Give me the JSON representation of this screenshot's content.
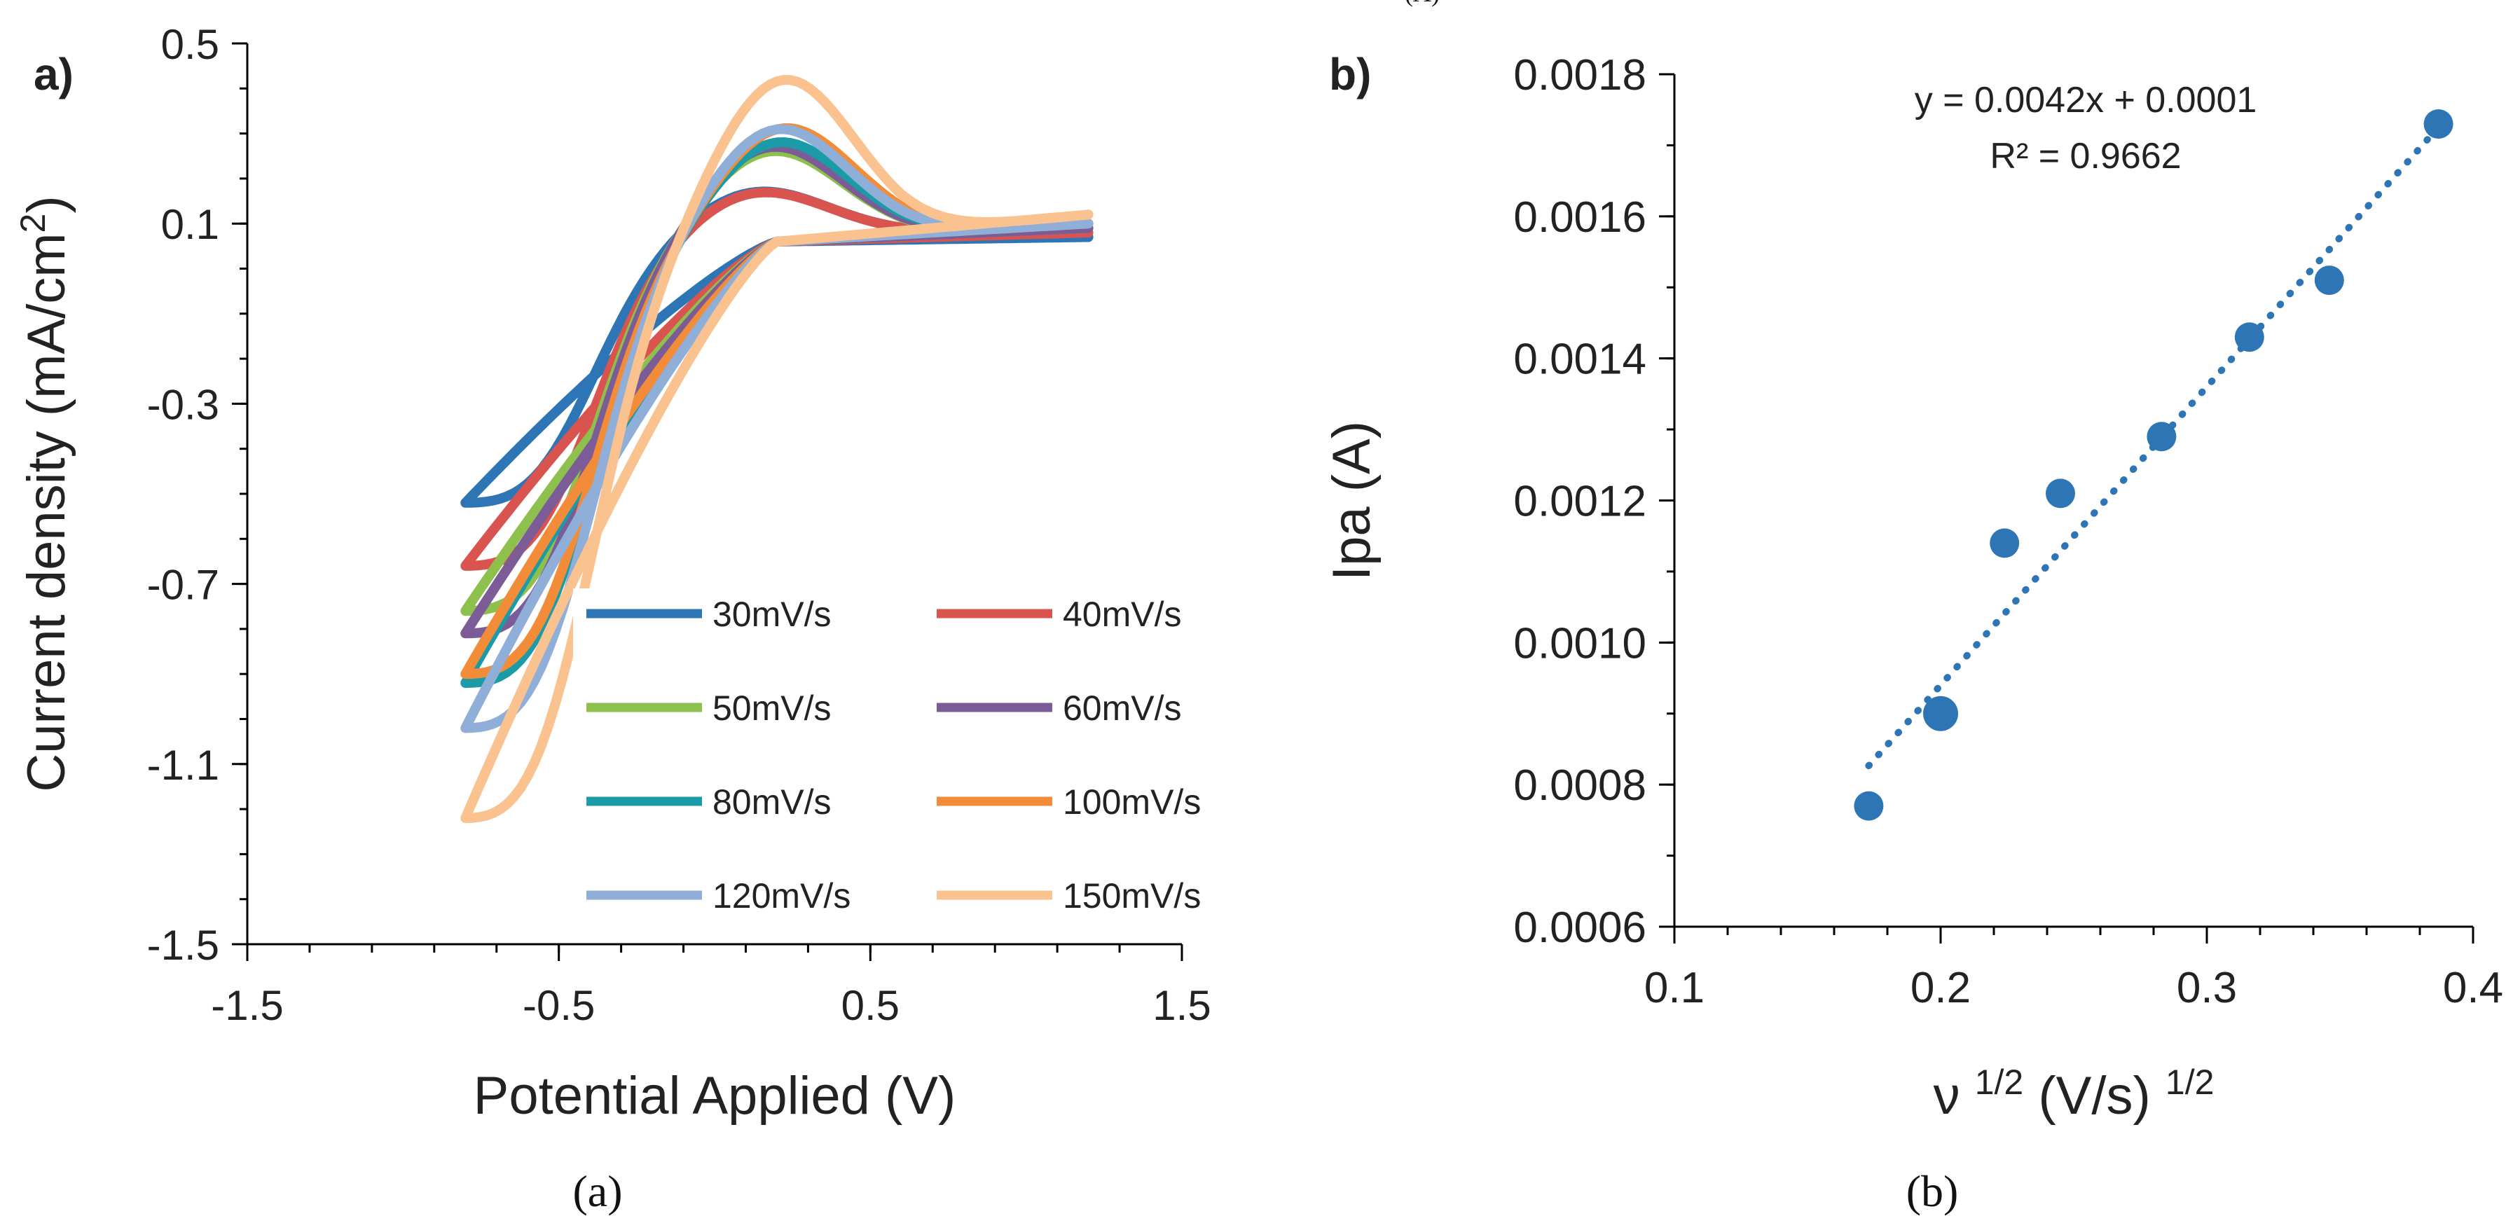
{
  "figure": {
    "caption_a": "(a)",
    "caption_b": "(b)",
    "panel_label_a": "a)",
    "panel_label_b": "b)",
    "header_fragment": "(A)"
  },
  "chart_data": [
    {
      "type": "line",
      "title": "",
      "xlabel": "Potential Applied (V)",
      "ylabel": "Current density (mA/cm²)",
      "xlim": [
        -1.5,
        1.5
      ],
      "ylim": [
        -1.5,
        0.5
      ],
      "xticks": [
        -1.5,
        -0.5,
        0.5,
        1.5
      ],
      "xtick_labels": [
        "-1.5",
        "-0.5",
        "0.5",
        "1.5"
      ],
      "yticks": [
        0.5,
        0.1,
        -0.3,
        -0.7,
        -1.1,
        -1.5
      ],
      "ytick_labels": [
        "0.5",
        "0.1",
        "-0.3",
        "-0.7",
        "-1.1",
        "-1.5"
      ],
      "legend_position": "lower-right",
      "series": [
        {
          "name": "30mV/s",
          "color": "#2E75B6",
          "e_min": -0.8,
          "e_max": 1.2,
          "i_low": -0.52,
          "i_pa": 0.18,
          "e_pa": 0.13,
          "i_switch_hi": 0.07
        },
        {
          "name": "40mV/s",
          "color": "#D9534F",
          "e_min": -0.8,
          "e_max": 1.2,
          "i_low": -0.66,
          "i_pa": 0.18,
          "e_pa": 0.13,
          "i_switch_hi": 0.08
        },
        {
          "name": "50mV/s",
          "color": "#8DC04D",
          "e_min": -0.8,
          "e_max": 1.2,
          "i_low": -0.76,
          "i_pa": 0.27,
          "e_pa": 0.18,
          "i_switch_hi": 0.09
        },
        {
          "name": "60mV/s",
          "color": "#7B5C96",
          "e_min": -0.8,
          "e_max": 1.2,
          "i_low": -0.81,
          "i_pa": 0.28,
          "e_pa": 0.18,
          "i_switch_hi": 0.09
        },
        {
          "name": "80mV/s",
          "color": "#1B9AA8",
          "e_min": -0.8,
          "e_max": 1.2,
          "i_low": -0.92,
          "i_pa": 0.29,
          "e_pa": 0.2,
          "i_switch_hi": 0.1
        },
        {
          "name": "100mV/s",
          "color": "#F28C38",
          "e_min": -0.8,
          "e_max": 1.2,
          "i_low": -0.9,
          "i_pa": 0.32,
          "e_pa": 0.22,
          "i_switch_hi": 0.1
        },
        {
          "name": "120mV/s",
          "color": "#8FAFD8",
          "e_min": -0.8,
          "e_max": 1.2,
          "i_low": -1.02,
          "i_pa": 0.32,
          "e_pa": 0.2,
          "i_switch_hi": 0.1
        },
        {
          "name": "150mV/s",
          "color": "#F9C28F",
          "e_min": -0.8,
          "e_max": 1.2,
          "i_low": -1.22,
          "i_pa": 0.43,
          "e_pa": 0.22,
          "i_switch_hi": 0.12
        }
      ]
    },
    {
      "type": "scatter",
      "title": "",
      "xlabel": "ν ¹ᐟ² (V/s) ¹ᐟ²",
      "ylabel": "Ipa (A)",
      "xlim": [
        0.1,
        0.4
      ],
      "ylim": [
        0.0006,
        0.0018
      ],
      "xticks": [
        0.1,
        0.2,
        0.3,
        0.4
      ],
      "xtick_labels": [
        "0.1",
        "0.2",
        "0.3",
        "0.4"
      ],
      "yticks": [
        0.0006,
        0.0008,
        0.001,
        0.0012,
        0.0014,
        0.0016,
        0.0018
      ],
      "ytick_labels": [
        "0.0006",
        "0.0008",
        "0.0010",
        "0.0012",
        "0.0014",
        "0.0016",
        "0.0018"
      ],
      "marker_color": "#2E75B6",
      "points": [
        {
          "x": 0.173,
          "y": 0.00077
        },
        {
          "x": 0.2,
          "y": 0.0009
        },
        {
          "x": 0.224,
          "y": 0.00114
        },
        {
          "x": 0.245,
          "y": 0.00121
        },
        {
          "x": 0.283,
          "y": 0.00129
        },
        {
          "x": 0.316,
          "y": 0.00143
        },
        {
          "x": 0.346,
          "y": 0.00151
        },
        {
          "x": 0.387,
          "y": 0.00173
        }
      ],
      "trendline": {
        "slope": 0.0042,
        "intercept": 0.0001,
        "x_range": [
          0.173,
          0.387
        ],
        "equation_label": "y = 0.0042x + 0.0001",
        "r2_label": "R² = 0.9662"
      }
    }
  ]
}
